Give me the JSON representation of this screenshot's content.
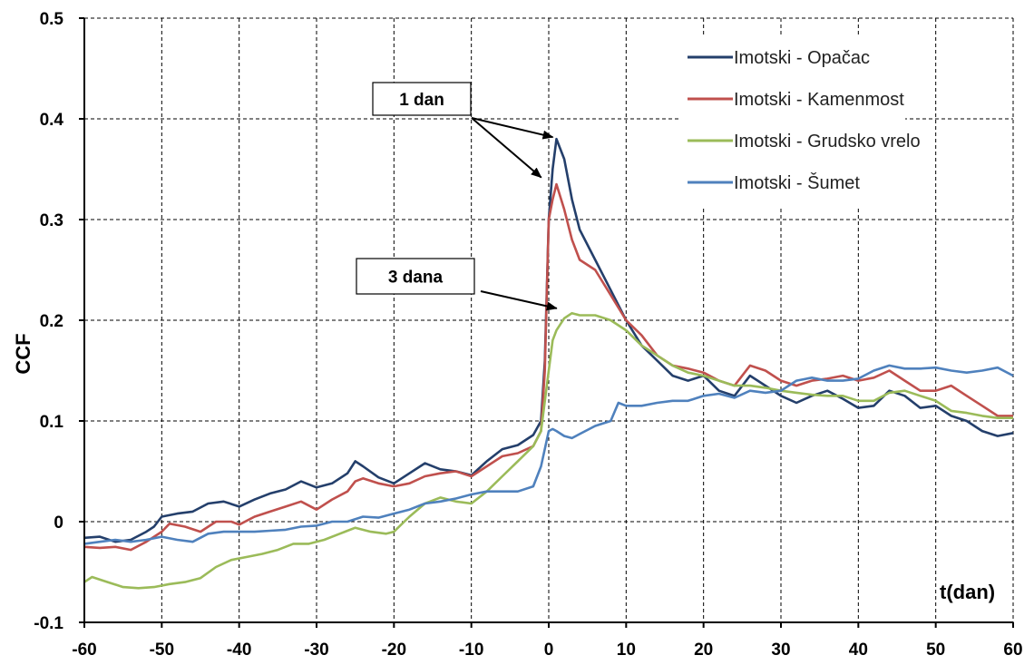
{
  "chart_data": {
    "type": "line",
    "title": "",
    "xlabel": "t(dan)",
    "ylabel": "CCF",
    "xlim": [
      -60,
      60
    ],
    "ylim": [
      -0.1,
      0.5
    ],
    "xticks": [
      -60,
      -50,
      -40,
      -30,
      -20,
      -10,
      0,
      10,
      20,
      30,
      40,
      50,
      60
    ],
    "yticks": [
      -0.1,
      0,
      0.1,
      0.2,
      0.3,
      0.4,
      0.5
    ],
    "ytick_labels": [
      "-0.1",
      "0",
      "0.1",
      "0.2",
      "0.3",
      "0.4",
      "0.5"
    ],
    "grid": true,
    "legend_position": "top-right",
    "series": [
      {
        "name": "Imotski - Opačac",
        "color": "#243f6b",
        "points": [
          [
            -60,
            -0.016
          ],
          [
            -58,
            -0.015
          ],
          [
            -56,
            -0.02
          ],
          [
            -54,
            -0.018
          ],
          [
            -52,
            -0.01
          ],
          [
            -51,
            -0.005
          ],
          [
            -50,
            0.005
          ],
          [
            -48,
            0.008
          ],
          [
            -46,
            0.01
          ],
          [
            -44,
            0.018
          ],
          [
            -42,
            0.02
          ],
          [
            -40,
            0.015
          ],
          [
            -38,
            0.022
          ],
          [
            -36,
            0.028
          ],
          [
            -34,
            0.032
          ],
          [
            -32,
            0.04
          ],
          [
            -30,
            0.034
          ],
          [
            -28,
            0.038
          ],
          [
            -26,
            0.048
          ],
          [
            -25,
            0.06
          ],
          [
            -24,
            0.055
          ],
          [
            -22,
            0.044
          ],
          [
            -20,
            0.038
          ],
          [
            -18,
            0.048
          ],
          [
            -16,
            0.058
          ],
          [
            -14,
            0.052
          ],
          [
            -12,
            0.05
          ],
          [
            -10,
            0.046
          ],
          [
            -8,
            0.06
          ],
          [
            -6,
            0.072
          ],
          [
            -4,
            0.076
          ],
          [
            -2,
            0.086
          ],
          [
            -1,
            0.1
          ],
          [
            -0.5,
            0.16
          ],
          [
            0,
            0.3
          ],
          [
            0.5,
            0.35
          ],
          [
            1,
            0.38
          ],
          [
            2,
            0.36
          ],
          [
            3,
            0.32
          ],
          [
            4,
            0.29
          ],
          [
            6,
            0.26
          ],
          [
            8,
            0.23
          ],
          [
            10,
            0.2
          ],
          [
            12,
            0.175
          ],
          [
            14,
            0.16
          ],
          [
            16,
            0.145
          ],
          [
            18,
            0.14
          ],
          [
            20,
            0.145
          ],
          [
            22,
            0.13
          ],
          [
            24,
            0.125
          ],
          [
            26,
            0.145
          ],
          [
            28,
            0.135
          ],
          [
            30,
            0.125
          ],
          [
            32,
            0.118
          ],
          [
            34,
            0.125
          ],
          [
            36,
            0.13
          ],
          [
            38,
            0.122
          ],
          [
            40,
            0.113
          ],
          [
            42,
            0.115
          ],
          [
            44,
            0.13
          ],
          [
            46,
            0.125
          ],
          [
            48,
            0.113
          ],
          [
            50,
            0.115
          ],
          [
            52,
            0.105
          ],
          [
            54,
            0.1
          ],
          [
            56,
            0.09
          ],
          [
            58,
            0.085
          ],
          [
            60,
            0.088
          ]
        ]
      },
      {
        "name": "Imotski - Kamenmost",
        "color": "#c0504d",
        "points": [
          [
            -60,
            -0.025
          ],
          [
            -58,
            -0.026
          ],
          [
            -56,
            -0.025
          ],
          [
            -54,
            -0.028
          ],
          [
            -52,
            -0.02
          ],
          [
            -50,
            -0.01
          ],
          [
            -49,
            -0.002
          ],
          [
            -47,
            -0.005
          ],
          [
            -45,
            -0.01
          ],
          [
            -43,
            0.0
          ],
          [
            -41,
            0.0
          ],
          [
            -40,
            -0.003
          ],
          [
            -38,
            0.005
          ],
          [
            -36,
            0.01
          ],
          [
            -34,
            0.015
          ],
          [
            -32,
            0.02
          ],
          [
            -30,
            0.012
          ],
          [
            -28,
            0.022
          ],
          [
            -26,
            0.03
          ],
          [
            -25,
            0.04
          ],
          [
            -24,
            0.043
          ],
          [
            -22,
            0.038
          ],
          [
            -20,
            0.035
          ],
          [
            -18,
            0.038
          ],
          [
            -16,
            0.045
          ],
          [
            -14,
            0.048
          ],
          [
            -12,
            0.05
          ],
          [
            -10,
            0.045
          ],
          [
            -8,
            0.055
          ],
          [
            -6,
            0.065
          ],
          [
            -4,
            0.068
          ],
          [
            -2,
            0.075
          ],
          [
            -1,
            0.09
          ],
          [
            -0.5,
            0.15
          ],
          [
            0,
            0.3
          ],
          [
            0.5,
            0.32
          ],
          [
            1,
            0.335
          ],
          [
            2,
            0.31
          ],
          [
            3,
            0.28
          ],
          [
            4,
            0.26
          ],
          [
            6,
            0.25
          ],
          [
            8,
            0.225
          ],
          [
            10,
            0.2
          ],
          [
            12,
            0.185
          ],
          [
            14,
            0.165
          ],
          [
            16,
            0.155
          ],
          [
            18,
            0.152
          ],
          [
            20,
            0.148
          ],
          [
            22,
            0.14
          ],
          [
            24,
            0.135
          ],
          [
            26,
            0.155
          ],
          [
            28,
            0.15
          ],
          [
            30,
            0.14
          ],
          [
            32,
            0.135
          ],
          [
            34,
            0.14
          ],
          [
            36,
            0.142
          ],
          [
            38,
            0.145
          ],
          [
            40,
            0.14
          ],
          [
            42,
            0.143
          ],
          [
            44,
            0.15
          ],
          [
            46,
            0.14
          ],
          [
            48,
            0.13
          ],
          [
            50,
            0.13
          ],
          [
            52,
            0.135
          ],
          [
            54,
            0.125
          ],
          [
            56,
            0.115
          ],
          [
            58,
            0.105
          ],
          [
            60,
            0.105
          ]
        ]
      },
      {
        "name": "Imotski - Grudsko vrelo",
        "color": "#9bbb59",
        "points": [
          [
            -60,
            -0.06
          ],
          [
            -59,
            -0.055
          ],
          [
            -57,
            -0.06
          ],
          [
            -55,
            -0.065
          ],
          [
            -53,
            -0.066
          ],
          [
            -51,
            -0.065
          ],
          [
            -49,
            -0.062
          ],
          [
            -47,
            -0.06
          ],
          [
            -45,
            -0.056
          ],
          [
            -43,
            -0.045
          ],
          [
            -41,
            -0.038
          ],
          [
            -39,
            -0.035
          ],
          [
            -37,
            -0.032
          ],
          [
            -35,
            -0.028
          ],
          [
            -33,
            -0.022
          ],
          [
            -31,
            -0.022
          ],
          [
            -29,
            -0.018
          ],
          [
            -27,
            -0.012
          ],
          [
            -25,
            -0.006
          ],
          [
            -23,
            -0.01
          ],
          [
            -21,
            -0.012
          ],
          [
            -20,
            -0.01
          ],
          [
            -18,
            0.005
          ],
          [
            -16,
            0.018
          ],
          [
            -14,
            0.024
          ],
          [
            -12,
            0.02
          ],
          [
            -10,
            0.018
          ],
          [
            -8,
            0.03
          ],
          [
            -6,
            0.045
          ],
          [
            -4,
            0.06
          ],
          [
            -2,
            0.075
          ],
          [
            -1,
            0.09
          ],
          [
            0,
            0.15
          ],
          [
            0.5,
            0.18
          ],
          [
            1,
            0.19
          ],
          [
            2,
            0.202
          ],
          [
            3,
            0.207
          ],
          [
            4,
            0.205
          ],
          [
            6,
            0.205
          ],
          [
            8,
            0.2
          ],
          [
            10,
            0.19
          ],
          [
            12,
            0.175
          ],
          [
            14,
            0.165
          ],
          [
            16,
            0.155
          ],
          [
            18,
            0.148
          ],
          [
            20,
            0.145
          ],
          [
            22,
            0.14
          ],
          [
            24,
            0.135
          ],
          [
            26,
            0.135
          ],
          [
            28,
            0.133
          ],
          [
            30,
            0.13
          ],
          [
            32,
            0.128
          ],
          [
            34,
            0.126
          ],
          [
            36,
            0.125
          ],
          [
            38,
            0.125
          ],
          [
            40,
            0.12
          ],
          [
            42,
            0.12
          ],
          [
            44,
            0.128
          ],
          [
            46,
            0.13
          ],
          [
            48,
            0.125
          ],
          [
            50,
            0.12
          ],
          [
            52,
            0.11
          ],
          [
            54,
            0.108
          ],
          [
            56,
            0.105
          ],
          [
            58,
            0.103
          ],
          [
            60,
            0.103
          ]
        ]
      },
      {
        "name": "Imotski - Šumet",
        "color": "#4f81bd",
        "points": [
          [
            -60,
            -0.022
          ],
          [
            -58,
            -0.02
          ],
          [
            -56,
            -0.018
          ],
          [
            -54,
            -0.02
          ],
          [
            -52,
            -0.018
          ],
          [
            -50,
            -0.015
          ],
          [
            -48,
            -0.018
          ],
          [
            -46,
            -0.02
          ],
          [
            -44,
            -0.012
          ],
          [
            -42,
            -0.01
          ],
          [
            -40,
            -0.01
          ],
          [
            -38,
            -0.01
          ],
          [
            -36,
            -0.009
          ],
          [
            -34,
            -0.008
          ],
          [
            -32,
            -0.005
          ],
          [
            -30,
            -0.004
          ],
          [
            -28,
            0.0
          ],
          [
            -26,
            0.0
          ],
          [
            -24,
            0.005
          ],
          [
            -22,
            0.004
          ],
          [
            -20,
            0.008
          ],
          [
            -18,
            0.012
          ],
          [
            -16,
            0.018
          ],
          [
            -14,
            0.02
          ],
          [
            -12,
            0.023
          ],
          [
            -10,
            0.027
          ],
          [
            -8,
            0.03
          ],
          [
            -6,
            0.03
          ],
          [
            -4,
            0.03
          ],
          [
            -2,
            0.035
          ],
          [
            -1,
            0.055
          ],
          [
            0,
            0.09
          ],
          [
            0.5,
            0.092
          ],
          [
            1,
            0.09
          ],
          [
            2,
            0.085
          ],
          [
            3,
            0.083
          ],
          [
            4,
            0.087
          ],
          [
            6,
            0.095
          ],
          [
            8,
            0.1
          ],
          [
            9,
            0.118
          ],
          [
            10,
            0.115
          ],
          [
            12,
            0.115
          ],
          [
            14,
            0.118
          ],
          [
            16,
            0.12
          ],
          [
            18,
            0.12
          ],
          [
            20,
            0.125
          ],
          [
            22,
            0.127
          ],
          [
            24,
            0.123
          ],
          [
            26,
            0.13
          ],
          [
            28,
            0.128
          ],
          [
            30,
            0.13
          ],
          [
            32,
            0.14
          ],
          [
            34,
            0.143
          ],
          [
            36,
            0.14
          ],
          [
            38,
            0.14
          ],
          [
            40,
            0.142
          ],
          [
            42,
            0.15
          ],
          [
            44,
            0.155
          ],
          [
            46,
            0.152
          ],
          [
            48,
            0.152
          ],
          [
            50,
            0.153
          ],
          [
            52,
            0.15
          ],
          [
            54,
            0.148
          ],
          [
            56,
            0.15
          ],
          [
            58,
            0.153
          ],
          [
            60,
            0.145
          ]
        ]
      }
    ],
    "annotations": [
      {
        "label": "1 dan",
        "arrows_to": [
          [
            1,
            0.38
          ],
          [
            -0.5,
            0.34
          ]
        ]
      },
      {
        "label": "3 dana",
        "arrows_to": [
          [
            1.5,
            0.21
          ]
        ]
      }
    ]
  }
}
